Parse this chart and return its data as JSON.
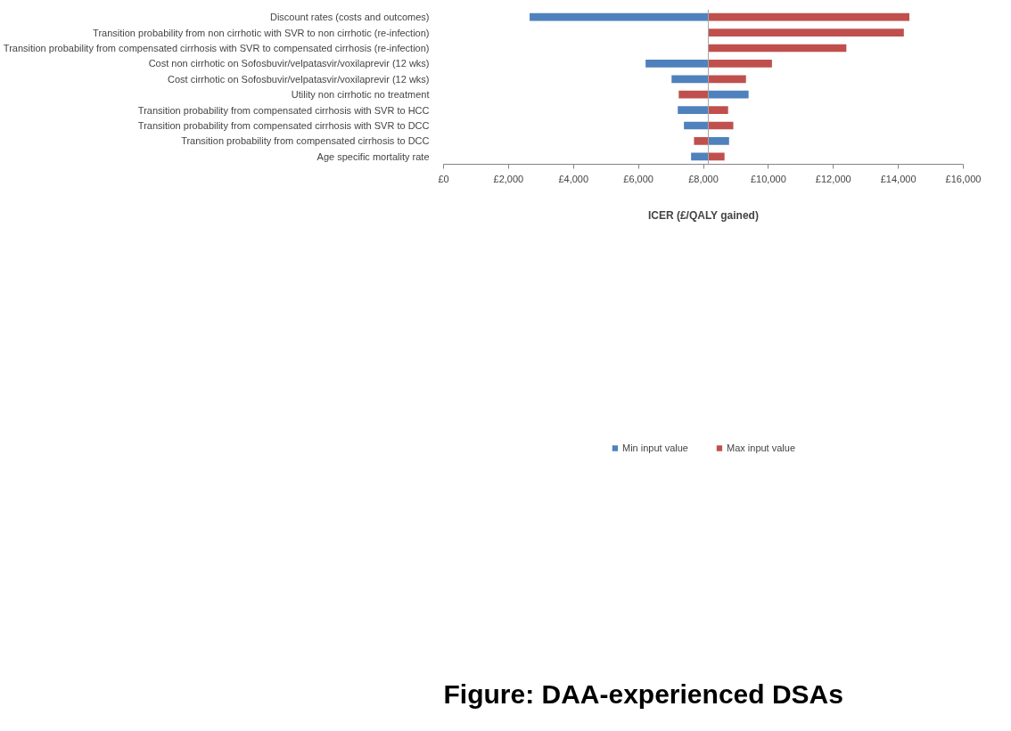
{
  "chart_data": {
    "type": "bar",
    "orientation": "horizontal",
    "title": "Figure: DAA-experienced DSAs",
    "xlabel": "ICER (£/QALY gained)",
    "categories": [
      "Discount rates (costs and outcomes)",
      "Transition probability from non cirrhotic with SVR to non cirrhotic (re-infection)",
      "Transition probability from compensated cirrhosis with SVR to compensated cirrhosis (re-infection)",
      "Cost non cirrhotic on Sofosbuvir/velpatasvir/voxilaprevir (12 wks)",
      "Cost cirrhotic on Sofosbuvir/velpatasvir/voxilaprevir (12 wks)",
      "Utility non cirrhotic no treatment",
      "Transition probability from compensated cirrhosis with SVR to HCC",
      "Transition probability from compensated cirrhosis with SVR to DCC",
      "Transition probability from compensated cirrhosis to DCC",
      "Age specific mortality rate"
    ],
    "series": [
      {
        "name": "Min input value",
        "color": "#4f81bd",
        "base": [
          2650,
          null,
          null,
          6220,
          7020,
          8150,
          7210,
          7400,
          8150,
          7620
        ],
        "values": [
          5500,
          null,
          null,
          1930,
          1130,
          1240,
          940,
          750,
          640,
          530
        ]
      },
      {
        "name": "Max input value",
        "color": "#c0504d",
        "base": [
          8150,
          8150,
          8150,
          8150,
          8150,
          7240,
          8150,
          8150,
          7710,
          8150
        ],
        "values": [
          6190,
          6020,
          4250,
          1960,
          1160,
          910,
          610,
          770,
          440,
          500
        ]
      }
    ],
    "xlim": [
      0,
      16000
    ],
    "xticks": [
      {
        "value": 0,
        "label": "£0"
      },
      {
        "value": 2000,
        "label": "£2,000"
      },
      {
        "value": 4000,
        "label": "£4,000"
      },
      {
        "value": 6000,
        "label": "£6,000"
      },
      {
        "value": 8000,
        "label": "£8,000"
      },
      {
        "value": 10000,
        "label": "£10,000"
      },
      {
        "value": 12000,
        "label": "£12,000"
      },
      {
        "value": 14000,
        "label": "£14,000"
      },
      {
        "value": 16000,
        "label": "£16,000"
      }
    ],
    "ref_lines": [
      {
        "axis": "x",
        "value": 8150,
        "color": "#a6a6a6"
      }
    ],
    "grid": false,
    "legend": "bottom"
  }
}
